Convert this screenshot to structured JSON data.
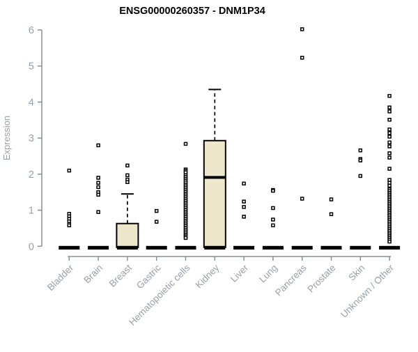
{
  "chart_data": {
    "type": "boxplot",
    "title": "ENSG00000260357 - DNM1P34",
    "ylabel": "Expression",
    "xlabel": "",
    "ylim": [
      0,
      6
    ],
    "yticks": [
      0,
      1,
      2,
      3,
      4,
      5,
      6
    ],
    "grid": false,
    "legend": "none",
    "categories": [
      "Bladder",
      "Brain",
      "Breast",
      "Gastric",
      "Hematopoietic cells",
      "Kidney",
      "Liver",
      "Lung",
      "Pancreas",
      "Prostate",
      "Skin",
      "Unknown / Other"
    ],
    "series": [
      {
        "category": "Bladder",
        "box": {
          "q1": 0,
          "median": 0,
          "q3": 0,
          "whisker_low": 0,
          "whisker_high": 0
        },
        "points": [
          2.1,
          0.9,
          0.83,
          0.76,
          0.69,
          0.62,
          0.58
        ]
      },
      {
        "category": "Brain",
        "box": {
          "q1": 0,
          "median": 0,
          "q3": 0,
          "whisker_low": 0,
          "whisker_high": 0
        },
        "points": [
          2.8,
          1.9,
          1.76,
          1.64,
          1.5,
          1.43,
          0.95
        ]
      },
      {
        "category": "Breast",
        "box": {
          "q1": 0,
          "median": 0,
          "q3": 0.63,
          "whisker_low": 0,
          "whisker_high": 1.45
        },
        "points": [
          2.24,
          1.97,
          1.85,
          1.78
        ]
      },
      {
        "category": "Gastric",
        "box": {
          "q1": 0,
          "median": 0,
          "q3": 0,
          "whisker_low": 0,
          "whisker_high": 0
        },
        "points": [
          0.98,
          0.68
        ]
      },
      {
        "category": "Hematopoietic cells",
        "box": {
          "q1": 0,
          "median": 0,
          "q3": 0,
          "whisker_low": 0,
          "whisker_high": 0
        },
        "points": [
          2.84,
          2.13,
          2.09,
          2.05,
          1.97,
          1.92,
          1.87,
          1.82,
          1.77,
          1.71,
          1.66,
          1.61,
          1.56,
          1.51,
          1.46,
          1.41,
          1.36,
          1.31,
          1.26,
          1.21,
          1.16,
          1.11,
          1.06,
          1.01,
          0.96,
          0.91,
          0.86,
          0.81,
          0.76,
          0.71,
          0.66,
          0.61,
          0.56,
          0.51,
          0.46,
          0.41,
          0.36,
          0.31,
          0.27,
          0.23
        ]
      },
      {
        "category": "Kidney",
        "box": {
          "q1": 0,
          "median": 1.91,
          "q3": 2.93,
          "whisker_low": 0,
          "whisker_high": 4.35
        },
        "points": []
      },
      {
        "category": "Liver",
        "box": {
          "q1": 0,
          "median": 0,
          "q3": 0,
          "whisker_low": 0,
          "whisker_high": 0
        },
        "points": [
          1.74,
          1.24,
          1.09,
          0.82
        ]
      },
      {
        "category": "Lung",
        "box": {
          "q1": 0,
          "median": 0,
          "q3": 0,
          "whisker_low": 0,
          "whisker_high": 0
        },
        "points": [
          1.56,
          1.54,
          1.06,
          0.74,
          0.58
        ]
      },
      {
        "category": "Pancreas",
        "box": {
          "q1": 0,
          "median": 0,
          "q3": 0,
          "whisker_low": 0,
          "whisker_high": 0
        },
        "points": [
          6.02,
          5.23,
          1.32
        ]
      },
      {
        "category": "Prostate",
        "box": {
          "q1": 0,
          "median": 0,
          "q3": 0,
          "whisker_low": 0,
          "whisker_high": 0
        },
        "points": [
          1.3,
          0.89
        ]
      },
      {
        "category": "Skin",
        "box": {
          "q1": 0,
          "median": 0,
          "q3": 0,
          "whisker_low": 0,
          "whisker_high": 0
        },
        "points": [
          2.66,
          2.42,
          2.38,
          1.95
        ]
      },
      {
        "category": "Unknown / Other",
        "box": {
          "q1": 0,
          "median": 0,
          "q3": 0,
          "whisker_low": 0,
          "whisker_high": 0
        },
        "points": [
          4.17,
          3.85,
          3.74,
          3.51,
          3.24,
          3.14,
          3.04,
          2.88,
          2.77,
          2.58,
          2.46,
          2.15,
          1.84,
          1.76,
          1.68,
          1.58,
          1.53,
          1.48,
          1.43,
          1.38,
          1.33,
          1.28,
          1.23,
          1.18,
          1.13,
          1.08,
          1.03,
          0.98,
          0.93,
          0.88,
          0.83,
          0.78,
          0.73,
          0.68,
          0.63,
          0.58,
          0.53,
          0.48,
          0.43,
          0.38,
          0.33,
          0.28,
          0.23,
          0.18,
          0.13
        ]
      }
    ],
    "colors": {
      "box_fill": "#EDE7CC",
      "box_stroke": "#000000",
      "median": "#000000",
      "point_stroke": "#000000",
      "point_fill": "#FFFFFF",
      "zero_bar": "#000000",
      "axis": "#8A8F94",
      "tick_label": "#98A0A8",
      "title": "#000000",
      "background": "#FFFFFF"
    }
  }
}
